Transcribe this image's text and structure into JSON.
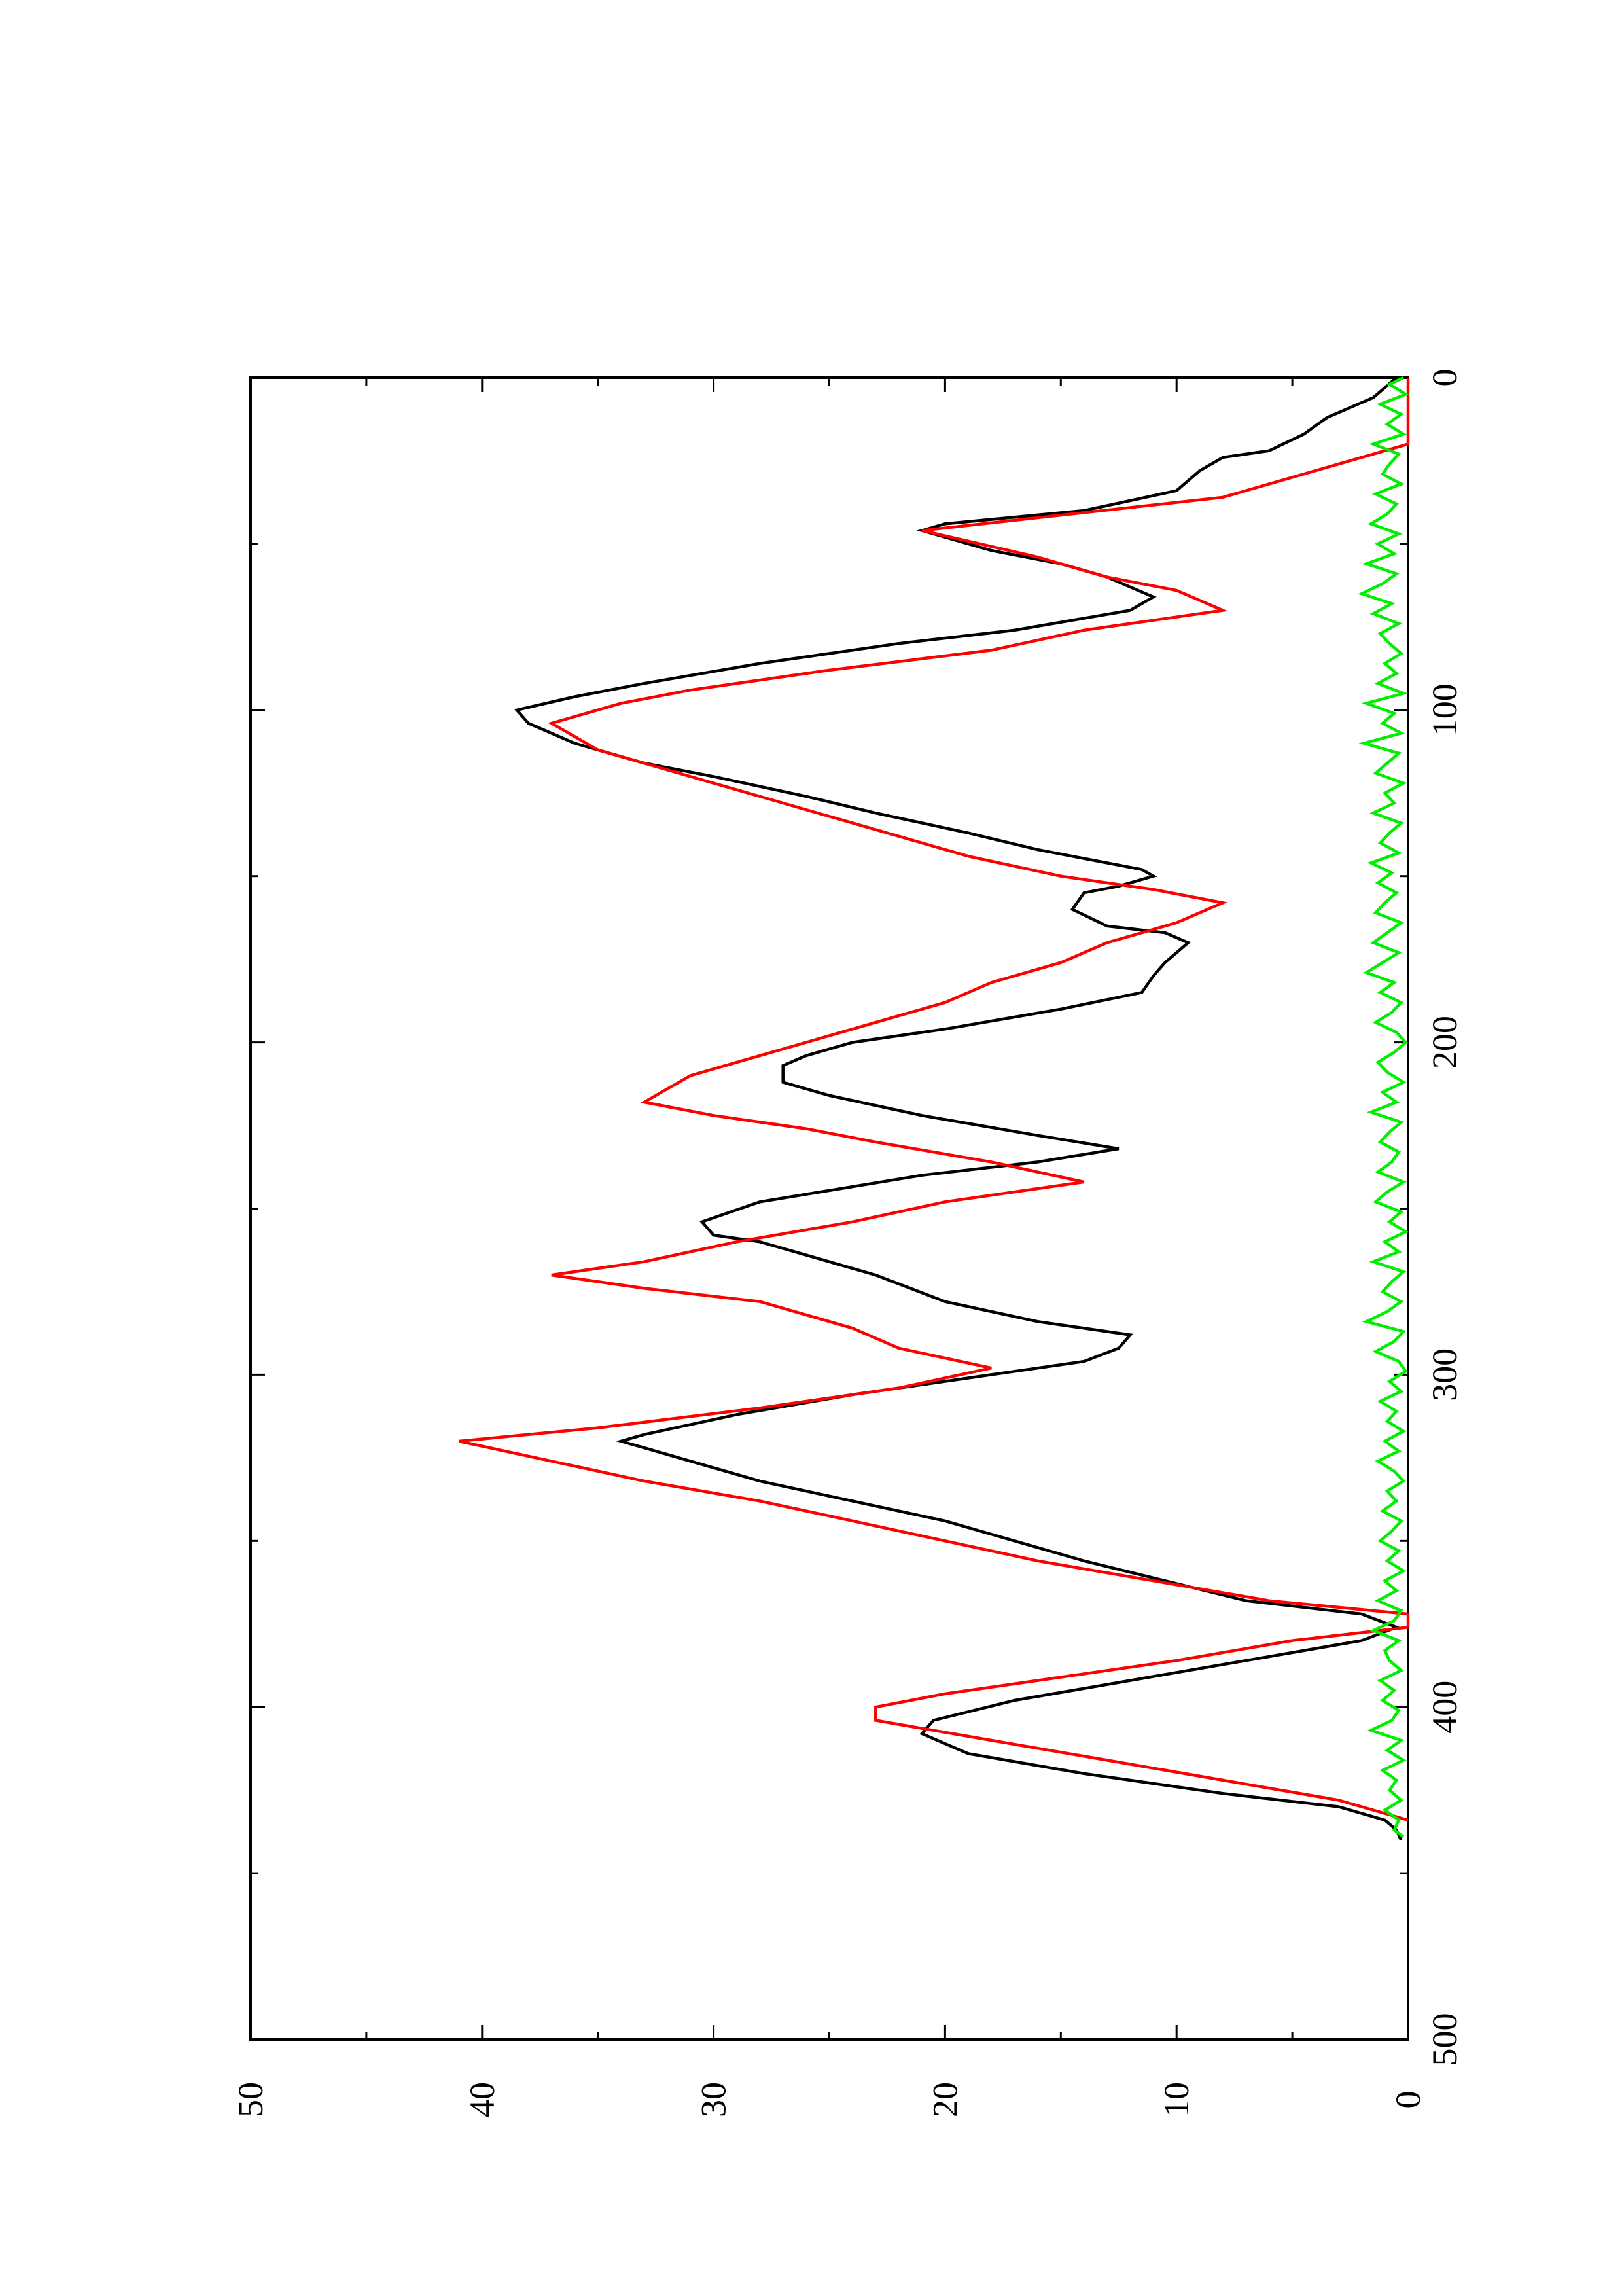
{
  "chart_data": {
    "type": "line",
    "orientation": "rotated-90-clockwise",
    "title": "",
    "xlabel": "",
    "ylabel": "",
    "xlim": [
      0,
      500
    ],
    "ylim": [
      0,
      50
    ],
    "x_ticks": [
      0,
      100,
      200,
      300,
      400,
      500
    ],
    "y_ticks": [
      0,
      10,
      20,
      30,
      40,
      50
    ],
    "grid": false,
    "legend": "none",
    "series": [
      {
        "color": "#000000",
        "x": [
          0,
          6,
          9,
          12,
          17,
          22,
          24,
          28,
          34,
          40,
          44,
          46,
          52,
          56,
          60,
          63,
          66,
          70,
          76,
          80,
          86,
          92,
          96,
          100,
          104,
          110,
          116,
          120,
          126,
          131,
          137,
          142,
          146,
          148,
          150,
          153,
          155,
          160,
          165,
          167,
          170,
          173,
          176,
          180,
          185,
          190,
          196,
          200,
          204,
          207,
          212,
          216,
          222,
          228,
          232,
          236,
          240,
          248,
          254,
          258,
          260,
          264,
          270,
          278,
          284,
          288,
          292,
          296,
          300,
          306,
          312,
          318,
          320,
          322,
          326,
          332,
          338,
          344,
          350,
          356,
          362,
          368,
          372,
          376,
          380,
          386,
          392,
          398,
          404,
          408,
          414,
          420,
          426,
          430,
          434,
          437,
          440
        ],
        "y": [
          0.5,
          1.5,
          2.5,
          3.5,
          4.5,
          6,
          8,
          9,
          10,
          14,
          20,
          21,
          18,
          15,
          13,
          12,
          11,
          12,
          17,
          22,
          28,
          33,
          36,
          38.5,
          38,
          36,
          33,
          30,
          26,
          23,
          19,
          16,
          13,
          11.5,
          11,
          12.5,
          14,
          14.5,
          13,
          10.5,
          9.5,
          10,
          10.5,
          11,
          11.5,
          15,
          20,
          24,
          26,
          27,
          27,
          25,
          21,
          16,
          12.5,
          16,
          21,
          28,
          30.5,
          30,
          28,
          26,
          23,
          20,
          16,
          12,
          12.5,
          14,
          18,
          24,
          29,
          33,
          34,
          33,
          31,
          28,
          24,
          20,
          17,
          14,
          10.5,
          7,
          2,
          0.5,
          2,
          7,
          12,
          17,
          20.5,
          21,
          19,
          14,
          8,
          3,
          1,
          0.5,
          0.3
        ]
      },
      {
        "color": "#ff0000",
        "x": [
          0,
          20,
          30,
          36,
          46,
          54,
          60,
          64,
          70,
          76,
          82,
          88,
          94,
          98,
          104,
          112,
          120,
          128,
          136,
          144,
          150,
          154,
          158,
          164,
          170,
          176,
          182,
          188,
          196,
          204,
          210,
          218,
          222,
          226,
          230,
          236,
          242,
          248,
          254,
          260,
          266,
          270,
          274,
          278,
          286,
          292,
          298,
          304,
          310,
          316,
          320,
          326,
          332,
          338,
          344,
          350,
          356,
          362,
          368,
          372,
          376,
          380,
          386,
          392,
          396,
          400,
          404,
          410,
          416,
          422,
          428,
          434
        ],
        "y": [
          0,
          0,
          5,
          8,
          21,
          16,
          13,
          10,
          8,
          14,
          18,
          25,
          31,
          34,
          37,
          35,
          31,
          27,
          23,
          19,
          15,
          11,
          8,
          10,
          13,
          15,
          18,
          20,
          24,
          28,
          31,
          33,
          30,
          26,
          23,
          18,
          14,
          20,
          24,
          29,
          33,
          37,
          33,
          28,
          24,
          22,
          18,
          22,
          28,
          35,
          41,
          37,
          33,
          28,
          24,
          20,
          16,
          11,
          6,
          0,
          0,
          5,
          10,
          16,
          20,
          23,
          23,
          18,
          13,
          8,
          3,
          0
        ]
      },
      {
        "color": "#00ee00",
        "x": [
          0,
          2,
          5,
          8,
          11,
          14,
          17,
          20,
          23,
          26,
          29,
          32,
          35,
          38,
          41,
          44,
          47,
          50,
          53,
          56,
          59,
          62,
          65,
          68,
          71,
          74,
          77,
          80,
          83,
          86,
          89,
          92,
          95,
          98,
          101,
          104,
          107,
          110,
          113,
          116,
          119,
          122,
          125,
          128,
          131,
          134,
          137,
          140,
          143,
          146,
          149,
          152,
          155,
          158,
          161,
          164,
          167,
          170,
          173,
          176,
          179,
          182,
          185,
          188,
          191,
          194,
          197,
          200,
          203,
          206,
          209,
          212,
          215,
          218,
          221,
          224,
          227,
          230,
          233,
          236,
          239,
          242,
          245,
          248,
          251,
          254,
          257,
          260,
          263,
          266,
          269,
          272,
          275,
          278,
          281,
          284,
          287,
          290,
          293,
          296,
          299,
          302,
          305,
          308,
          311,
          314,
          317,
          320,
          323,
          326,
          329,
          332,
          335,
          338,
          341,
          344,
          347,
          350,
          353,
          356,
          359,
          362,
          365,
          368,
          371,
          374,
          377,
          380,
          383,
          386,
          389,
          392,
          395,
          398,
          401,
          404,
          407,
          410,
          413,
          416,
          419,
          422,
          425,
          428,
          431,
          434,
          437,
          439
        ],
        "y": [
          0.2,
          0.8,
          0.1,
          1.2,
          0.3,
          0.9,
          0.2,
          1.5,
          0.4,
          0.8,
          1.1,
          0.3,
          1.4,
          0.5,
          0.9,
          1.6,
          0.4,
          1.3,
          0.6,
          1.8,
          0.5,
          1.1,
          2.0,
          0.7,
          1.5,
          0.4,
          1.2,
          0.8,
          0.3,
          1.0,
          0.5,
          1.3,
          0.2,
          1.8,
          0.6,
          1.1,
          0.3,
          1.9,
          0.4,
          0.9,
          1.4,
          0.2,
          1.0,
          0.6,
          1.5,
          0.3,
          0.8,
          1.2,
          0.4,
          1.6,
          0.7,
          1.3,
          0.5,
          1.0,
          1.4,
          0.3,
          0.9,
          1.5,
          0.4,
          1.1,
          1.8,
          0.6,
          1.2,
          0.3,
          0.7,
          1.4,
          0.5,
          0.1,
          0.6,
          1.3,
          0.9,
          0.2,
          1.1,
          0.5,
          1.6,
          0.3,
          0.8,
          1.2,
          0.4,
          0.7,
          1.3,
          0.2,
          0.9,
          1.4,
          0.3,
          0.8,
          0.1,
          1.0,
          0.4,
          1.5,
          0.2,
          0.7,
          1.1,
          0.3,
          0.9,
          1.8,
          0.2,
          0.6,
          1.4,
          0.4,
          0.1,
          0.8,
          0.3,
          1.2,
          0.5,
          0.9,
          0.2,
          1.0,
          0.4,
          1.3,
          0.6,
          0.2,
          0.9,
          0.5,
          1.1,
          0.3,
          0.7,
          1.2,
          0.4,
          0.9,
          0.2,
          1.0,
          0.5,
          1.3,
          0.3,
          0.6,
          1.5,
          0.4,
          1.0,
          0.8,
          0.3,
          1.2,
          0.6,
          1.1,
          0.4,
          0.7,
          1.6,
          0.3,
          0.9,
          0.2,
          1.1,
          0.5,
          0.8,
          0.3,
          1.0,
          0.4,
          0.6,
          0.2
        ]
      }
    ]
  }
}
